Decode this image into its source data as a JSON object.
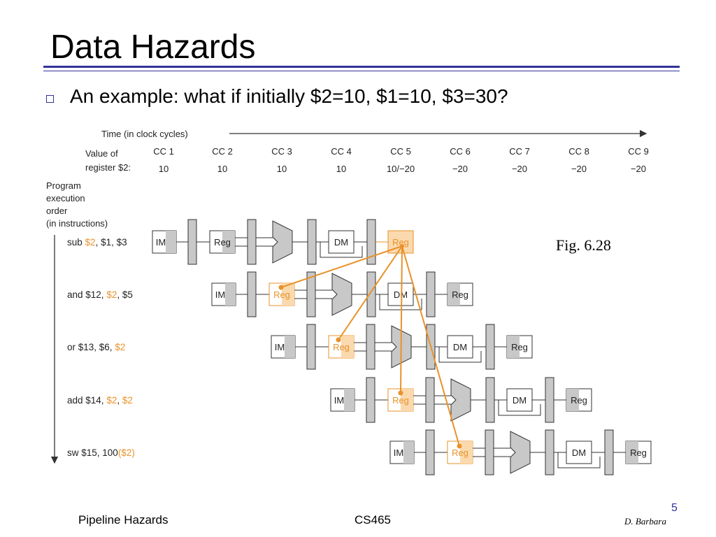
{
  "slide": {
    "title": "Data Hazards",
    "bullet": "An example: what if initially $2=10, $1=10, $3=30?",
    "figure_caption": "Fig. 6.28",
    "slide_number": "5",
    "footer": {
      "left": "Pipeline Hazards",
      "center": "CS465",
      "right": "D. Barbara"
    }
  },
  "diagram": {
    "time_label": "Time (in clock cycles)",
    "value_label_line1": "Value of",
    "value_label_line2": "register $2:",
    "order_label": [
      "Program",
      "execution",
      "order",
      "(in instructions)"
    ],
    "cycles": [
      {
        "label": "CC 1",
        "value": "10"
      },
      {
        "label": "CC 2",
        "value": "10"
      },
      {
        "label": "CC 3",
        "value": "10"
      },
      {
        "label": "CC 4",
        "value": "10"
      },
      {
        "label": "CC 5",
        "value": "10/−20"
      },
      {
        "label": "CC 6",
        "value": "−20"
      },
      {
        "label": "CC 7",
        "value": "−20"
      },
      {
        "label": "CC 8",
        "value": "−20"
      },
      {
        "label": "CC 9",
        "value": "−20"
      }
    ],
    "instructions": [
      {
        "parts": [
          {
            "t": "sub ",
            "hl": false
          },
          {
            "t": "$2",
            "hl": true
          },
          {
            "t": ", $1, $3",
            "hl": false
          }
        ]
      },
      {
        "parts": [
          {
            "t": "and $12, ",
            "hl": false
          },
          {
            "t": "$2",
            "hl": true
          },
          {
            "t": ", $5",
            "hl": false
          }
        ]
      },
      {
        "parts": [
          {
            "t": "or $13, $6, ",
            "hl": false
          },
          {
            "t": "$2",
            "hl": true
          }
        ]
      },
      {
        "parts": [
          {
            "t": "add $14, ",
            "hl": false
          },
          {
            "t": "$2",
            "hl": true
          },
          {
            "t": ", ",
            "hl": false
          },
          {
            "t": "$2",
            "hl": true
          }
        ]
      },
      {
        "parts": [
          {
            "t": "sw $15, 100",
            "hl": false
          },
          {
            "t": "($2)",
            "hl": true
          }
        ]
      }
    ],
    "stage_labels": {
      "im": "IM",
      "reg": "Reg",
      "dm": "DM"
    },
    "colors": {
      "highlight": "#e8922a",
      "highlight_fill": "#fbd9ae",
      "stage_gray": "#c8c8c8",
      "line": "#333333"
    }
  }
}
